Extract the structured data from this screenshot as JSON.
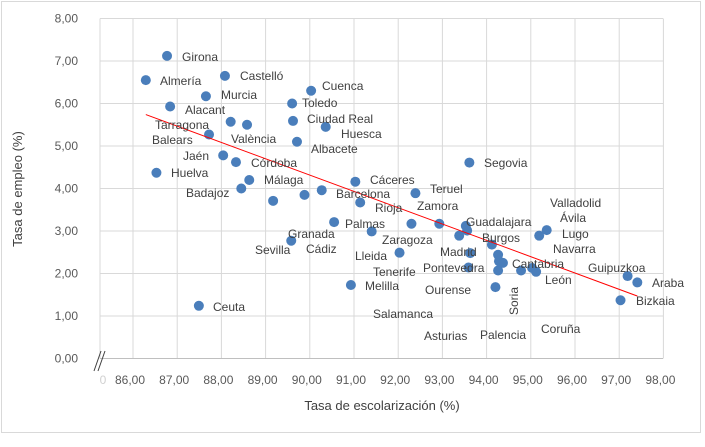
{
  "chart_data": {
    "type": "scatter",
    "title": "",
    "xlabel": "Tasa de escolarización (%)",
    "ylabel": "Tasa de empleo (%)",
    "xlim": [
      85.25,
      98
    ],
    "ylim": [
      0,
      8
    ],
    "x_axis_break": true,
    "x_break_tick": "0",
    "xticks": [
      "86,00",
      "87,00",
      "88,00",
      "89,00",
      "90,00",
      "91,00",
      "92,00",
      "93,00",
      "94,00",
      "95,00",
      "96,00",
      "97,00",
      "98,00"
    ],
    "xtick_values": [
      86,
      87,
      88,
      89,
      90,
      91,
      92,
      93,
      94,
      95,
      96,
      97,
      98
    ],
    "yticks": [
      "0,00",
      "1,00",
      "2,00",
      "3,00",
      "4,00",
      "5,00",
      "6,00",
      "7,00",
      "8,00"
    ],
    "ytick_values": [
      0,
      1,
      2,
      3,
      4,
      5,
      6,
      7,
      8
    ],
    "grid": true,
    "marker_color": "#4a7ebb",
    "trendline_color": "#ff0000",
    "trendline": {
      "x": [
        86.29,
        97.41
      ],
      "y": [
        5.74,
        1.47
      ]
    },
    "points": [
      {
        "label": "Girona",
        "x": 86.77,
        "y": 7.12
      },
      {
        "label": "Almería",
        "x": 86.29,
        "y": 6.55
      },
      {
        "label": "Castelló",
        "x": 88.08,
        "y": 6.65
      },
      {
        "label": "Murcia",
        "x": 87.65,
        "y": 6.17
      },
      {
        "label": "Alacant",
        "x": 86.84,
        "y": 5.93
      },
      {
        "label": "Tarragona",
        "x": 88.21,
        "y": 5.57
      },
      {
        "label": "València",
        "x": 88.58,
        "y": 5.5
      },
      {
        "label": "Balears",
        "x": 87.72,
        "y": 5.27
      },
      {
        "label": "Jaén",
        "x": 88.04,
        "y": 4.78
      },
      {
        "label": "Córdoba",
        "x": 88.33,
        "y": 4.62
      },
      {
        "label": "Huelva",
        "x": 86.53,
        "y": 4.37
      },
      {
        "label": "Málaga",
        "x": 88.63,
        "y": 4.2
      },
      {
        "label": "Badajoz",
        "x": 88.45,
        "y": 4.0
      },
      {
        "label": "Sevilla",
        "x": 89.17,
        "y": 3.71
      },
      {
        "label": "Toledo",
        "x": 89.6,
        "y": 6.0
      },
      {
        "label": "Cuenca",
        "x": 90.03,
        "y": 6.3
      },
      {
        "label": "Ciudad Real",
        "x": 89.62,
        "y": 5.59
      },
      {
        "label": "Huesca",
        "x": 90.36,
        "y": 5.45
      },
      {
        "label": "Albacete",
        "x": 89.71,
        "y": 5.1
      },
      {
        "label": "Granada",
        "x": 89.88,
        "y": 3.85
      },
      {
        "label": "Barcelona",
        "x": 90.27,
        "y": 3.96
      },
      {
        "label": "Cáceres",
        "x": 91.03,
        "y": 4.16
      },
      {
        "label": "Rioja",
        "x": 91.14,
        "y": 3.67
      },
      {
        "label": "Segovia",
        "x": 93.61,
        "y": 4.61
      },
      {
        "label": "Teruel",
        "x": 92.39,
        "y": 3.89
      },
      {
        "label": "Zaragoza",
        "x": 91.4,
        "y": 2.99
      },
      {
        "label": "Cádiz",
        "x": 89.58,
        "y": 2.77
      },
      {
        "label": "Palmas",
        "x": 90.55,
        "y": 3.21
      },
      {
        "label": "Zamora",
        "x": 92.3,
        "y": 3.17
      },
      {
        "label": "Guadalajara",
        "x": 92.93,
        "y": 3.17
      },
      {
        "label": "Valladolid",
        "x": 93.53,
        "y": 3.12
      },
      {
        "label": "Burgos",
        "x": 93.56,
        "y": 3.01
      },
      {
        "label": "Madrid",
        "x": 93.38,
        "y": 2.89
      },
      {
        "label": "Ávila",
        "x": 95.19,
        "y": 2.89
      },
      {
        "label": "Lugo",
        "x": 95.36,
        "y": 3.02
      },
      {
        "label": "Lleida",
        "x": 92.03,
        "y": 2.49
      },
      {
        "label": "Pontevedra",
        "x": 93.63,
        "y": 2.48
      },
      {
        "label": "Navarra",
        "x": 94.12,
        "y": 2.68
      },
      {
        "label": "Cantabria",
        "x": 94.26,
        "y": 2.44
      },
      {
        "label": "León",
        "x": 94.28,
        "y": 2.29
      },
      {
        "label": "Salamanca",
        "x": 94.37,
        "y": 2.25
      },
      {
        "label": "Asturias",
        "x": 94.26,
        "y": 2.07
      },
      {
        "label": "Soria",
        "x": 94.78,
        "y": 2.07
      },
      {
        "label": "Palencia",
        "x": 95.03,
        "y": 2.13
      },
      {
        "label": "Coruña",
        "x": 95.12,
        "y": 2.04
      },
      {
        "label": "Tenerife",
        "x": 93.59,
        "y": 2.14
      },
      {
        "label": "Guipuzkoa",
        "x": 97.19,
        "y": 1.94
      },
      {
        "label": "Araba",
        "x": 97.41,
        "y": 1.79
      },
      {
        "label": "Bizkaia",
        "x": 97.03,
        "y": 1.37
      },
      {
        "label": "Ourense",
        "x": 94.2,
        "y": 1.68
      },
      {
        "label": "Melilla",
        "x": 90.93,
        "y": 1.73
      },
      {
        "label": "Ceuta",
        "x": 87.49,
        "y": 1.24
      }
    ]
  }
}
